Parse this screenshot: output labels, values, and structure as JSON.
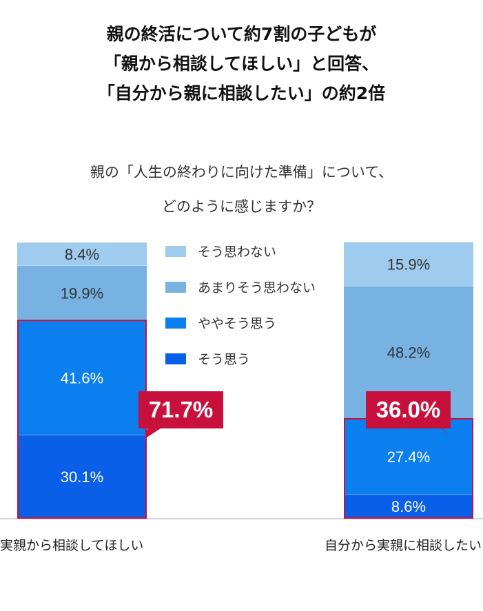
{
  "title": {
    "line1": "親の終活について約7割の子どもが",
    "line2": "「親から相談してほしい」と回答、",
    "line3": "「自分から親に相談したい」の約2倍"
  },
  "question": {
    "line1": "親の「人生の終わりに向けた準備」について、",
    "line2": "どのように感じますか？"
  },
  "chart_data": {
    "type": "bar",
    "stacked": true,
    "unit": "%",
    "categories": [
      "実親から相談してほしい",
      "自分から実親に相談したい"
    ],
    "series": [
      {
        "name": "そう思う",
        "values": [
          30.1,
          8.6
        ],
        "color": "#0a5fe8"
      },
      {
        "name": "ややそう思う",
        "values": [
          41.6,
          27.4
        ],
        "color": "#0b7ff0"
      },
      {
        "name": "あまりそう思わない",
        "values": [
          19.9,
          48.2
        ],
        "color": "#77b2e3"
      },
      {
        "name": "そう思わない",
        "values": [
          8.4,
          15.9
        ],
        "color": "#9fcbef"
      }
    ],
    "value_labels": [
      [
        "30.1%",
        "41.6%",
        "19.9%",
        "8.4%"
      ],
      [
        "8.6%",
        "27.4%",
        "48.2%",
        "15.9%"
      ]
    ],
    "callouts": [
      "71.7%",
      "36.0%"
    ],
    "legend_order": [
      "そう思わない",
      "あまりそう思わない",
      "ややそう思う",
      "そう思う"
    ],
    "ylim": [
      0,
      100
    ],
    "highlight_color": "#c8103c"
  }
}
